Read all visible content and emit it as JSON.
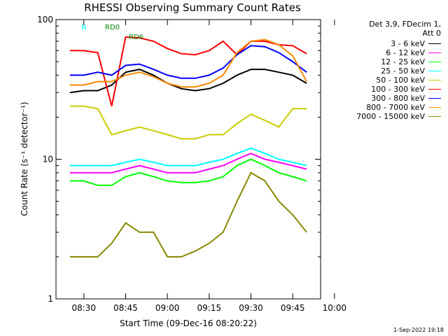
{
  "chart_data": {
    "type": "line",
    "title": "RHESSI Observing Summary Count Rates",
    "xlabel": "Start Time (09-Dec-16 08:20:22)",
    "ylabel": "Count Rate (s⁻¹ detector⁻¹)",
    "yscale": "log",
    "ylim": [
      1,
      100
    ],
    "y_tick_labels": [
      "1",
      "10",
      "100"
    ],
    "x_tick_labels": [
      "08:30",
      "08:45",
      "09:00",
      "09:15",
      "09:30",
      "09:45",
      "10:00"
    ],
    "x": [
      "08:20",
      "08:25",
      "08:30",
      "08:35",
      "08:40",
      "08:45",
      "08:50",
      "08:55",
      "09:00",
      "09:05",
      "09:10",
      "09:15",
      "09:20",
      "09:25",
      "09:30",
      "09:35",
      "09:40",
      "09:45",
      "09:50",
      "09:55"
    ],
    "legend_header": [
      "Det 3,9, FDecim 1,",
      "Att 0"
    ],
    "legend_position": "right",
    "grid": false,
    "series": [
      {
        "name": "3 - 6 keV",
        "color": "#000000",
        "values": [
          null,
          30,
          31,
          31,
          34,
          42,
          44,
          40,
          35,
          32,
          31,
          32,
          35,
          40,
          44,
          44,
          42,
          40,
          35,
          null
        ]
      },
      {
        "name": "6 - 12 keV",
        "color": "#ff00ff",
        "values": [
          null,
          8,
          8,
          8,
          8,
          8.5,
          9,
          8.5,
          8,
          8,
          8,
          8.5,
          9,
          10,
          11,
          10,
          9.5,
          9,
          8.5,
          null
        ]
      },
      {
        "name": "12 - 25 keV",
        "color": "#00ff00",
        "values": [
          null,
          7,
          7,
          6.5,
          6.5,
          7.5,
          8,
          7.5,
          7,
          6.8,
          6.8,
          7,
          7.5,
          9,
          10,
          9,
          8,
          7.5,
          7,
          null
        ]
      },
      {
        "name": "25 - 50 keV",
        "color": "#00ffff",
        "values": [
          null,
          9,
          9,
          9,
          9,
          9.5,
          10,
          9.5,
          9,
          9,
          9,
          9.5,
          10,
          11,
          12,
          11,
          10,
          9.5,
          9,
          null
        ]
      },
      {
        "name": "50 - 100 keV",
        "color": "#cccc00",
        "values": [
          null,
          24,
          24,
          23,
          15,
          16,
          17,
          16,
          15,
          14,
          14,
          15,
          15,
          18,
          21,
          19,
          17,
          23,
          23,
          null
        ]
      },
      {
        "name": "100 - 300 keV",
        "color": "#ff0000",
        "values": [
          null,
          60,
          60,
          58,
          24,
          75,
          74,
          70,
          62,
          57,
          56,
          60,
          70,
          56,
          70,
          70,
          66,
          65,
          57,
          null
        ]
      },
      {
        "name": "300 - 800 keV",
        "color": "#0000ff",
        "values": [
          null,
          40,
          40,
          42,
          40,
          47,
          48,
          44,
          40,
          38,
          38,
          40,
          45,
          56,
          65,
          64,
          58,
          50,
          42,
          null
        ]
      },
      {
        "name": "800 - 7000 keV",
        "color": "#ff8800",
        "values": [
          null,
          34,
          34,
          36,
          36,
          40,
          42,
          39,
          35,
          33,
          33,
          35,
          40,
          58,
          70,
          72,
          66,
          55,
          36,
          null
        ]
      },
      {
        "name": "7000 - 15000 keV",
        "color": "#888800",
        "values": [
          null,
          2,
          2,
          2,
          2.5,
          3.5,
          3,
          3,
          2,
          2,
          2.2,
          2.5,
          3,
          5,
          8,
          7,
          5,
          4,
          3,
          null
        ]
      }
    ],
    "annotations": [
      {
        "label": "N",
        "color": "#00ffff"
      },
      {
        "label": "RD0",
        "color": "#008800"
      },
      {
        "label": "RD6",
        "color": "#008800"
      }
    ],
    "footer": "1-Sep-2022 19:18"
  }
}
